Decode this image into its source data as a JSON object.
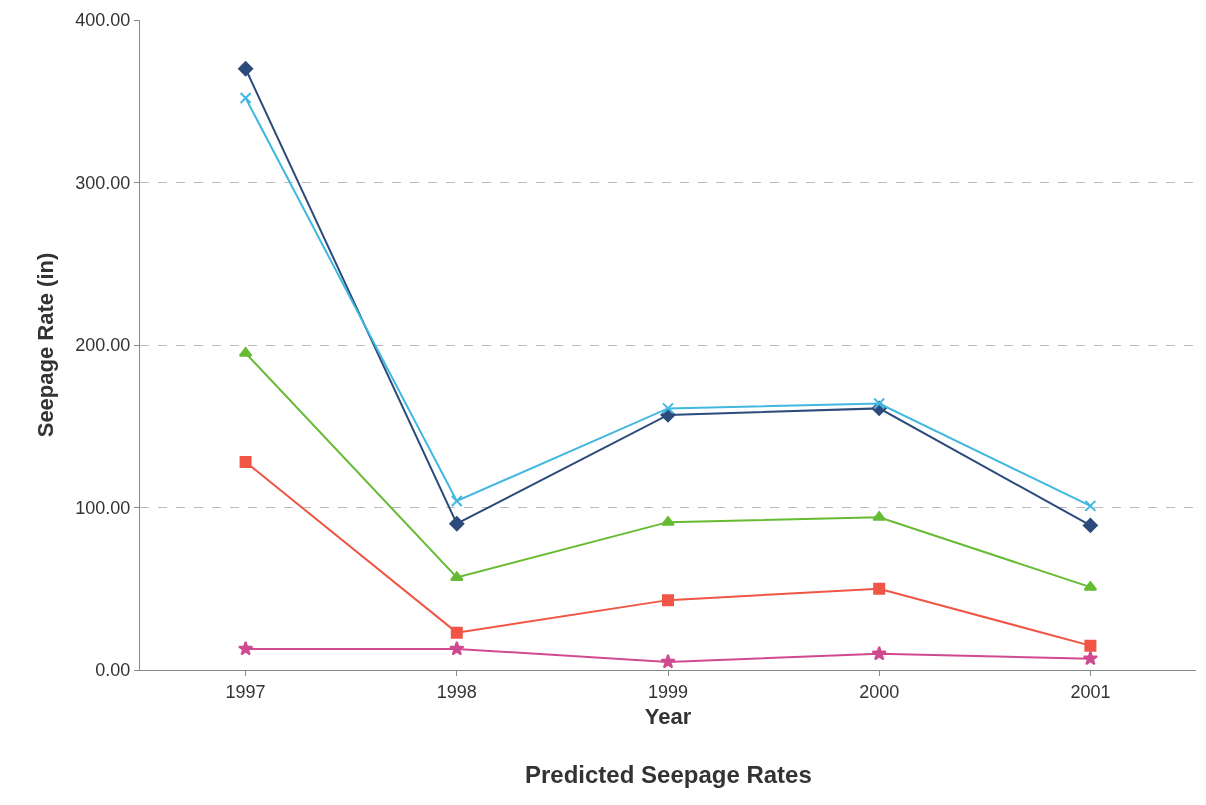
{
  "chart_data": {
    "type": "line",
    "title": "Predicted Seepage Rates",
    "xlabel": "Year",
    "ylabel": "Seepage Rate (in)",
    "categories": [
      "1997",
      "1998",
      "1999",
      "2000",
      "2001"
    ],
    "series": [
      {
        "color": "#2c4a7a",
        "marker": "diamond",
        "values": [
          370,
          90,
          157,
          161,
          89
        ]
      },
      {
        "color": "#40b8e0",
        "marker": "cross",
        "values": [
          352,
          104,
          161,
          164,
          101
        ]
      },
      {
        "color": "#66bb33",
        "marker": "triangle",
        "values": [
          195,
          57,
          91,
          94,
          51
        ]
      },
      {
        "color": "#f05545",
        "marker": "square",
        "values": [
          128,
          23,
          43,
          50,
          15
        ]
      },
      {
        "color": "#d04a90",
        "marker": "star",
        "values": [
          13,
          13,
          5,
          10,
          7
        ]
      }
    ],
    "ylim": [
      0,
      400
    ],
    "yticks": [
      {
        "value": 0,
        "label": "0.00"
      },
      {
        "value": 100,
        "label": "100.00"
      },
      {
        "value": 200,
        "label": "200.00"
      },
      {
        "value": 300,
        "label": "300.00"
      },
      {
        "value": 400,
        "label": "400.00"
      }
    ],
    "grid": "y"
  }
}
